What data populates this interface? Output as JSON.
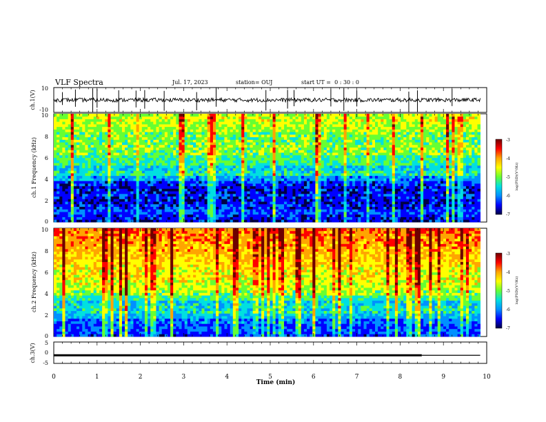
{
  "header": {
    "title": "VLF Spectra",
    "date": "Jul. 17, 2023",
    "station": "station= OUJ",
    "start": "start UT =  0 : 30 : 0"
  },
  "colorbar": {
    "label": "log(PSD)(V²/Hz)",
    "ticks": [
      "-3",
      "-4",
      "-5",
      "-6",
      "-7"
    ],
    "colors": [
      "#6e0000",
      "#ff0000",
      "#ffa500",
      "#ffff00",
      "#66ff33",
      "#00e0e0",
      "#0090ff",
      "#0000ff",
      "#000044"
    ]
  },
  "chart_data": [
    {
      "type": "line",
      "name": "ch.1 waveform",
      "ylabel": "ch.1(V)",
      "ylim": [
        -10,
        10
      ],
      "yticks": [
        "10",
        "-10"
      ],
      "xlim": [
        0,
        10
      ],
      "x": [
        0,
        9.85
      ],
      "baseline": 0,
      "spike_times": [
        0.2,
        0.5,
        0.9,
        1.0,
        1.5,
        1.9,
        2.1,
        2.55,
        3.3,
        3.75,
        4.9,
        5.4,
        5.55,
        6.4,
        6.7,
        7.0,
        8.2,
        8.4,
        9.2
      ]
    },
    {
      "type": "heatmap",
      "name": "ch.1 spectrogram",
      "ylabel": "ch.1 Frequency (kHz)",
      "ylim": [
        0,
        10
      ],
      "yticks": [
        "0",
        "2",
        "4",
        "6",
        "8",
        "10"
      ],
      "xlim": [
        0,
        9.85
      ],
      "zlabel": "log(PSD)(V²/Hz)",
      "zlim": [
        -7,
        -3
      ],
      "freq_profile": [
        -6.6,
        -6.5,
        -6.3,
        -6.5,
        -6.6,
        -6.5,
        -6.6,
        -6.4,
        -5.9,
        -5.4,
        -5.6,
        -5.3,
        -5.2,
        -5.0,
        -4.9,
        -5.0,
        -5.0,
        -4.8,
        -4.7,
        -4.6,
        -4.7
      ]
    },
    {
      "type": "heatmap",
      "name": "ch.2 spectrogram",
      "ylabel": "ch.2 Frequency (kHz)",
      "ylim": [
        0,
        10
      ],
      "yticks": [
        "0",
        "2",
        "4",
        "6",
        "8",
        "10"
      ],
      "xlim": [
        0,
        9.85
      ],
      "zlabel": "log(PSD)(V²/Hz)",
      "zlim": [
        -7,
        -3
      ],
      "freq_profile": [
        -6.4,
        -6.3,
        -6.3,
        -6.1,
        -5.8,
        -5.5,
        -5.6,
        -5.3,
        -4.9,
        -4.7,
        -4.6,
        -4.5,
        -4.5,
        -4.4,
        -4.3,
        -4.2,
        -4.1,
        -4.0,
        -3.9,
        -3.9,
        -3.8
      ]
    },
    {
      "type": "line",
      "name": "ch.3 waveform",
      "ylabel": "ch.3(V)",
      "ylim": [
        -5,
        5
      ],
      "yticks": [
        "5",
        "0",
        "-5"
      ],
      "xlim": [
        0,
        10
      ],
      "xlabel": "Time (min)",
      "xticks": [
        "0",
        "1",
        "2",
        "3",
        "4",
        "5",
        "6",
        "7",
        "8",
        "9",
        "10"
      ],
      "x": [
        0,
        8.5,
        9.85
      ],
      "y": [
        -1.2,
        -1.2,
        -1.2
      ]
    }
  ]
}
